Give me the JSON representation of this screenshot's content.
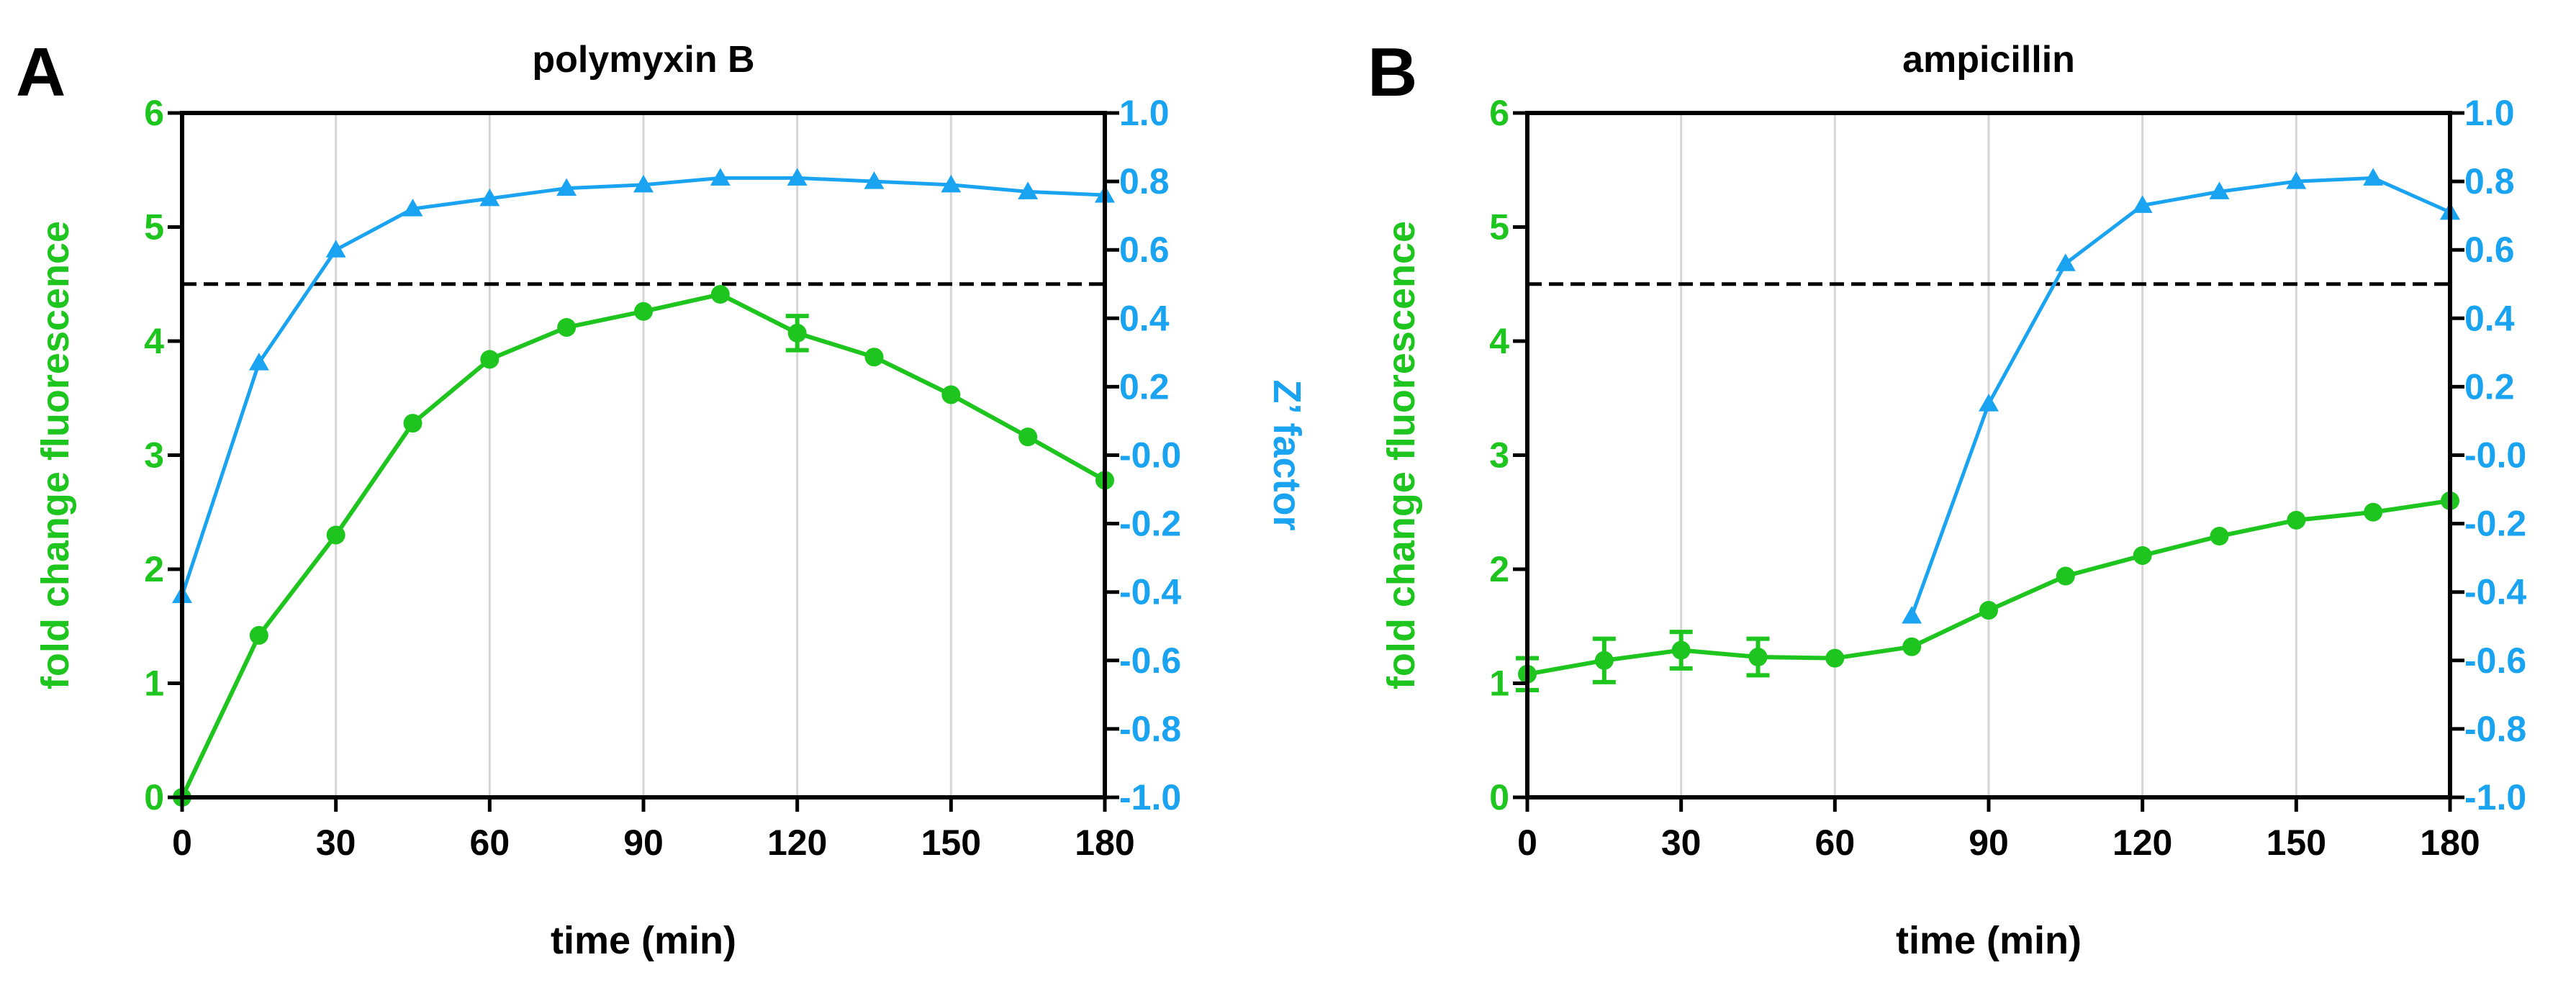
{
  "panels": [
    {
      "letter": "A",
      "title": "polymyxin B",
      "xlabel": "time (min)",
      "ylabel_left": "fold change fluorescence",
      "ylabel_right": "Z’ factor"
    },
    {
      "letter": "B",
      "title": "ampicillin",
      "xlabel": "time (min)",
      "ylabel_left": "fold change fluorescence",
      "ylabel_right": ""
    }
  ],
  "chart_data": [
    {
      "type": "line",
      "title": "polymyxin B",
      "xlabel": "time (min)",
      "ylabel": "fold change fluorescence",
      "y2label": "Z’ factor",
      "xlim": [
        0,
        180
      ],
      "ylim": [
        0,
        6
      ],
      "y2lim": [
        -1.0,
        1.0
      ],
      "xticks": [
        "0",
        "30",
        "60",
        "90",
        "120",
        "150",
        "180"
      ],
      "yticks": [
        "0",
        "1",
        "2",
        "3",
        "4",
        "5",
        "6"
      ],
      "y2ticks": [
        "-1.0",
        "-0.8",
        "-0.6",
        "-0.4",
        "-0.2",
        "-0.0",
        "0.2",
        "0.4",
        "0.6",
        "0.8",
        "1.0"
      ],
      "grid": "vertical",
      "reference_line": {
        "axis": "y2",
        "value": 0.5,
        "style": "dashed",
        "color": "#000000"
      },
      "series": [
        {
          "axis": "left",
          "marker": "circle",
          "color": "#1ec51e",
          "x": [
            0,
            15,
            30,
            45,
            60,
            75,
            90,
            105,
            120,
            135,
            150,
            165,
            180
          ],
          "values": [
            0.0,
            1.42,
            2.3,
            3.28,
            3.84,
            4.12,
            4.26,
            4.41,
            4.07,
            3.86,
            3.53,
            3.16,
            2.78
          ],
          "error": [
            0,
            0,
            0,
            0,
            0,
            0,
            0,
            0,
            0.15,
            0,
            0,
            0,
            0
          ]
        },
        {
          "axis": "right",
          "marker": "triangle",
          "color": "#1aa3f0",
          "x": [
            0,
            15,
            30,
            45,
            60,
            75,
            90,
            105,
            120,
            135,
            150,
            165,
            180
          ],
          "values": [
            -0.41,
            0.27,
            0.6,
            0.72,
            0.75,
            0.78,
            0.79,
            0.81,
            0.81,
            0.8,
            0.79,
            0.77,
            0.76
          ]
        }
      ]
    },
    {
      "type": "line",
      "title": "ampicillin",
      "xlabel": "time (min)",
      "ylabel": "fold change fluorescence",
      "y2label": "",
      "xlim": [
        0,
        180
      ],
      "ylim": [
        0,
        6
      ],
      "y2lim": [
        -1.0,
        1.0
      ],
      "xticks": [
        "0",
        "30",
        "60",
        "90",
        "120",
        "150",
        "180"
      ],
      "yticks": [
        "0",
        "1",
        "2",
        "3",
        "4",
        "5",
        "6"
      ],
      "y2ticks": [
        "-1.0",
        "-0.8",
        "-0.6",
        "-0.4",
        "-0.2",
        "-0.0",
        "0.2",
        "0.4",
        "0.6",
        "0.8",
        "1.0"
      ],
      "grid": "vertical",
      "reference_line": {
        "axis": "y2",
        "value": 0.5,
        "style": "dashed",
        "color": "#000000"
      },
      "series": [
        {
          "axis": "left",
          "marker": "circle",
          "color": "#1ec51e",
          "x": [
            0,
            15,
            30,
            45,
            60,
            75,
            90,
            105,
            120,
            135,
            150,
            165,
            180
          ],
          "values": [
            1.08,
            1.2,
            1.29,
            1.23,
            1.22,
            1.32,
            1.64,
            1.94,
            2.12,
            2.29,
            2.43,
            2.5,
            2.6
          ],
          "error": [
            0.14,
            0.19,
            0.16,
            0.16,
            0,
            0,
            0,
            0,
            0,
            0,
            0,
            0,
            0
          ]
        },
        {
          "axis": "right",
          "marker": "triangle",
          "color": "#1aa3f0",
          "x": [
            75,
            90,
            105,
            120,
            135,
            150,
            165,
            180
          ],
          "values": [
            -0.47,
            0.15,
            0.56,
            0.73,
            0.77,
            0.8,
            0.81,
            0.71
          ]
        }
      ]
    }
  ]
}
